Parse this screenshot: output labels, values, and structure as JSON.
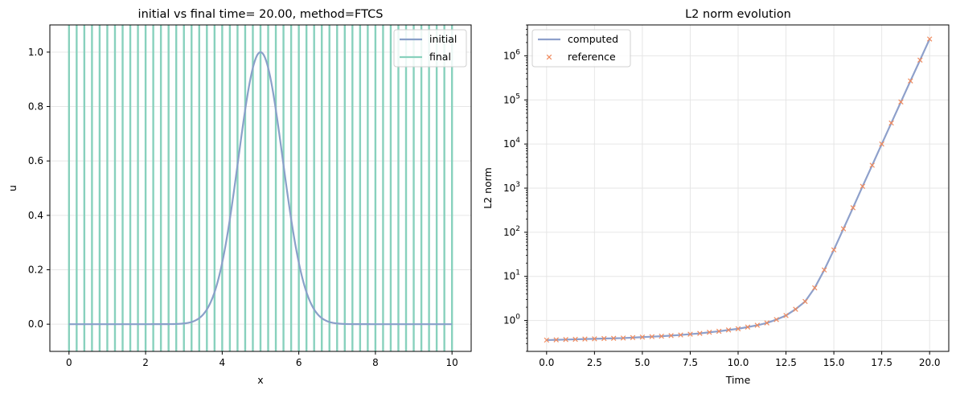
{
  "chart_data": [
    {
      "type": "line",
      "title": "initial vs final time= 20.00, method=FTCS",
      "xlabel": "x",
      "ylabel": "u",
      "xlim": [
        -0.5,
        10.5
      ],
      "ylim": [
        -0.1,
        1.1
      ],
      "xticks": [
        0,
        2,
        4,
        6,
        8,
        10
      ],
      "yticks": [
        0.0,
        0.2,
        0.4,
        0.6,
        0.8,
        1.0
      ],
      "xtick_labels": [
        "0",
        "2",
        "4",
        "6",
        "8",
        "10"
      ],
      "ytick_labels": [
        "0.0",
        "0.2",
        "0.4",
        "0.6",
        "0.8",
        "1.0"
      ],
      "grid": true,
      "legend_position": "upper right",
      "series": [
        {
          "name": "initial",
          "color": "#8aa0c9",
          "kind": "gaussian",
          "center": 5.0,
          "amplitude": 1.0,
          "width": 0.58
        },
        {
          "name": "final",
          "color": "#88d1bd",
          "kind": "oscillation",
          "note_values": "alternating large positive/negative values at every grid point, exceeding the axis range"
        }
      ],
      "final_line_x": [
        0.0,
        0.2,
        0.4,
        0.6,
        0.8,
        1.0,
        1.2,
        1.4,
        1.6,
        1.8,
        2.0,
        2.2,
        2.4,
        2.6,
        2.8,
        3.0,
        3.2,
        3.4,
        3.6,
        3.8,
        4.0,
        4.2,
        4.4,
        4.6,
        4.8,
        5.0,
        5.2,
        5.4,
        5.6,
        5.8,
        6.0,
        6.2,
        6.4,
        6.6,
        6.8,
        7.0,
        7.2,
        7.4,
        7.6,
        7.8,
        8.0,
        8.2,
        8.4,
        8.6,
        8.8,
        9.0,
        9.2,
        9.4,
        9.6,
        9.8,
        10.0
      ]
    },
    {
      "type": "line",
      "title": "L2 norm evolution",
      "xlabel": "Time",
      "ylabel": "L2 norm",
      "xlim": [
        -1.0,
        21.0
      ],
      "ylim_log10": [
        -0.7,
        6.7
      ],
      "yscale": "log",
      "xticks": [
        0.0,
        2.5,
        5.0,
        7.5,
        10.0,
        12.5,
        15.0,
        17.5,
        20.0
      ],
      "xtick_labels": [
        "0.0",
        "2.5",
        "5.0",
        "7.5",
        "10.0",
        "12.5",
        "15.0",
        "17.5",
        "20.0"
      ],
      "ytick_exponents": [
        0,
        1,
        2,
        3,
        4,
        5,
        6
      ],
      "ytick_base": "10",
      "grid": true,
      "legend_position": "upper left",
      "series": [
        {
          "name": "computed",
          "color": "#8ea0cb",
          "marker": "line"
        },
        {
          "name": "reference",
          "color": "#f08a5d",
          "marker": "x"
        }
      ],
      "x": [
        0.0,
        0.5,
        1.0,
        1.5,
        2.0,
        2.5,
        3.0,
        3.5,
        4.0,
        4.5,
        5.0,
        5.5,
        6.0,
        6.5,
        7.0,
        7.5,
        8.0,
        8.5,
        9.0,
        9.5,
        10.0,
        10.5,
        11.0,
        11.5,
        12.0,
        12.5,
        13.0,
        13.5,
        14.0,
        14.5,
        15.0,
        15.5,
        16.0,
        16.5,
        17.0,
        17.5,
        18.0,
        18.5,
        19.0,
        19.5,
        20.0
      ],
      "values": [
        0.36,
        0.365,
        0.37,
        0.375,
        0.38,
        0.385,
        0.39,
        0.395,
        0.4,
        0.41,
        0.42,
        0.43,
        0.44,
        0.455,
        0.47,
        0.49,
        0.51,
        0.54,
        0.57,
        0.61,
        0.65,
        0.71,
        0.78,
        0.88,
        1.05,
        1.3,
        1.8,
        2.7,
        5.5,
        14,
        40,
        120,
        360,
        1100,
        3300,
        10000,
        30000,
        90000,
        270000,
        800000,
        2400000
      ]
    }
  ]
}
